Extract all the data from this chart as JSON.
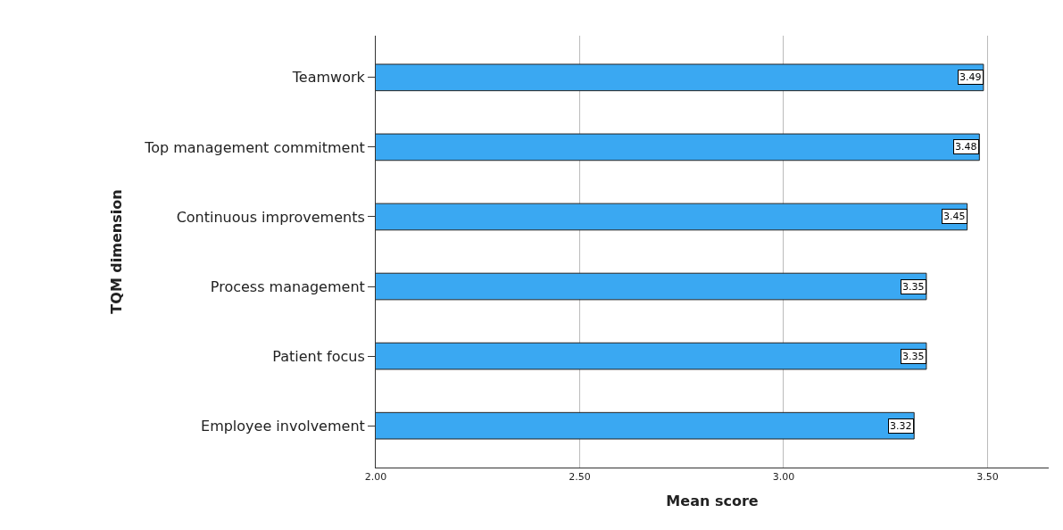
{
  "chart_data": {
    "type": "bar",
    "orientation": "horizontal",
    "xlabel": "Mean score",
    "ylabel": "TQM dimension",
    "categories": [
      "Teamwork",
      "Top management commitment",
      "Continuous improvements",
      "Process management",
      "Patient focus",
      "Employee involvement"
    ],
    "values": [
      3.49,
      3.48,
      3.45,
      3.35,
      3.35,
      3.32
    ],
    "value_labels": [
      "3.49",
      "3.48",
      "3.45",
      "3.35",
      "3.35",
      "3.32"
    ],
    "color": "#3aa8f2",
    "xlim": [
      2.0,
      3.65
    ],
    "xticks": [
      {
        "value": 2.0,
        "label": "2.00"
      },
      {
        "value": 2.5,
        "label": "2.50"
      },
      {
        "value": 3.0,
        "label": "3.00"
      },
      {
        "value": 3.5,
        "label": "3.50"
      }
    ],
    "grid": "x",
    "legend": false
  }
}
